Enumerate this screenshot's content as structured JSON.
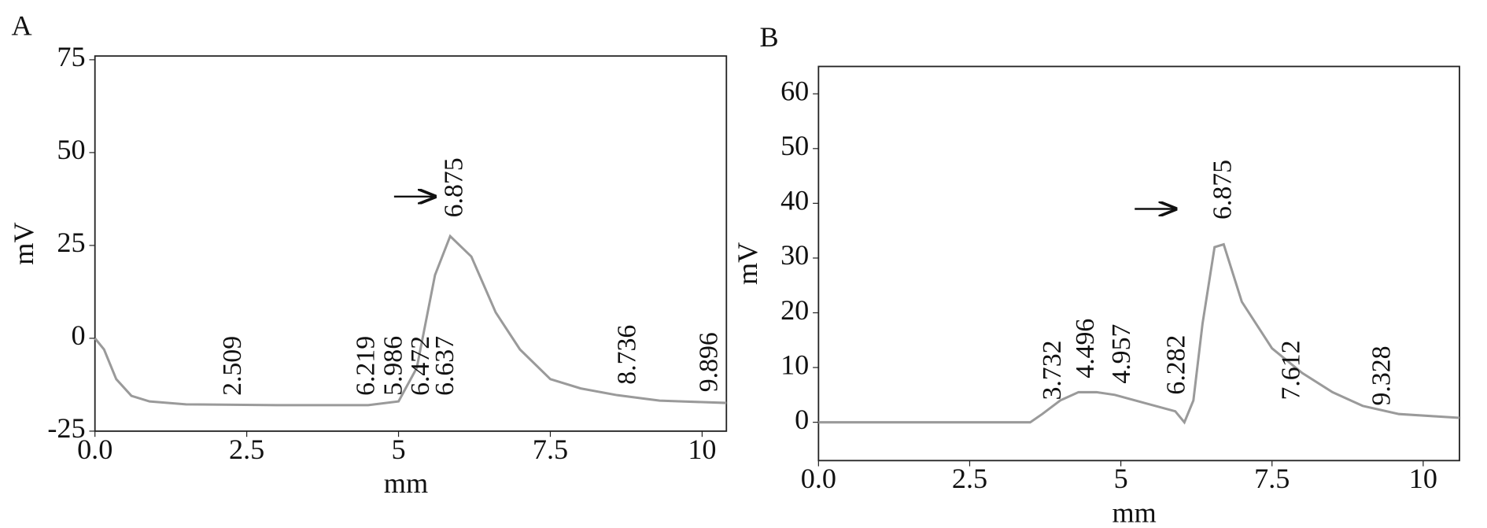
{
  "chart_data": [
    {
      "type": "line",
      "panel": "A",
      "ylabel": "mV",
      "xlabel": "mm",
      "xlim": [
        0,
        10.4
      ],
      "ylim": [
        -25,
        76
      ],
      "xticks": [
        {
          "value": 0,
          "label": "0.0"
        },
        2.5,
        5,
        7.5,
        10
      ],
      "yticks": [
        75,
        50,
        25,
        0,
        -25
      ],
      "series": [
        {
          "color": "#9a9a9a",
          "x": [
            0,
            0.15,
            0.35,
            0.6,
            0.9,
            1.5,
            3,
            4.5,
            5.0,
            5.3,
            5.6,
            5.85,
            6.2,
            6.6,
            7.0,
            7.5,
            8.0,
            8.6,
            9.3,
            10.4
          ],
          "values": [
            0,
            -3,
            -11,
            -15.5,
            -17,
            -17.8,
            -18,
            -18,
            -17,
            -8,
            17,
            27.5,
            22,
            7,
            -3,
            -11,
            -13.5,
            -15.3,
            -16.8,
            -17.4
          ]
        }
      ],
      "annotations": [
        {
          "x": 2.3,
          "y": -17,
          "label": "2.509"
        },
        {
          "x": 4.5,
          "y": -17,
          "label": "6.219"
        },
        {
          "x": 4.95,
          "y": -17,
          "label": "5.986"
        },
        {
          "x": 5.4,
          "y": -17,
          "label": "6.472"
        },
        {
          "x": 5.8,
          "y": -17,
          "label": "6.637"
        },
        {
          "x": 5.95,
          "y": 31,
          "label": "6.875"
        },
        {
          "x": 8.8,
          "y": -14,
          "label": "8.736"
        },
        {
          "x": 10.15,
          "y": -16,
          "label": "9.896"
        }
      ]
    },
    {
      "type": "line",
      "panel": "B",
      "ylabel": "mV",
      "xlabel": "mm",
      "xlim": [
        0,
        10.6
      ],
      "ylim": [
        -7,
        65
      ],
      "xticks": [
        {
          "value": 0,
          "label": "0.0"
        },
        2.5,
        5,
        7.5,
        10
      ],
      "yticks": [
        0,
        10,
        20,
        30,
        40,
        50,
        60
      ],
      "series": [
        {
          "color": "#9a9a9a",
          "x": [
            0,
            3.5,
            3.7,
            4.0,
            4.3,
            4.6,
            4.9,
            5.4,
            5.9,
            6.05,
            6.2,
            6.35,
            6.55,
            6.7,
            7.0,
            7.5,
            8.0,
            8.5,
            9.0,
            9.6,
            10.6
          ],
          "values": [
            0,
            0,
            1.5,
            4,
            5.5,
            5.5,
            5,
            3.5,
            2,
            0,
            4,
            18,
            32,
            32.5,
            22,
            13.5,
            9,
            5.5,
            3,
            1.5,
            0.8
          ]
        }
      ],
      "annotations": [
        {
          "x": 3.9,
          "y": 3,
          "label": "3.732"
        },
        {
          "x": 4.45,
          "y": 7,
          "label": "4.496"
        },
        {
          "x": 5.05,
          "y": 6,
          "label": "4.957"
        },
        {
          "x": 5.95,
          "y": 4,
          "label": "6.282"
        },
        {
          "x": 6.72,
          "y": 36,
          "label": "6.875"
        },
        {
          "x": 7.85,
          "y": 3,
          "label": "7.612"
        },
        {
          "x": 9.35,
          "y": 2,
          "label": "9.328"
        }
      ]
    }
  ]
}
